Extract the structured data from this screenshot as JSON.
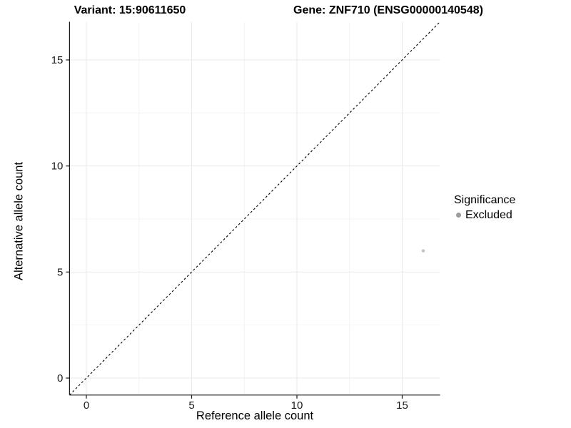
{
  "chart_data": {
    "type": "scatter",
    "titles": {
      "variant": "Variant: 15:90611650",
      "gene": "Gene: ZNF710 (ENSG00000140548)"
    },
    "xlabel": "Reference allele count",
    "ylabel": "Alternative allele count",
    "xlim": [
      -0.8,
      16.8
    ],
    "ylim": [
      -0.8,
      16.8
    ],
    "x_ticks": [
      0,
      5,
      10,
      15
    ],
    "y_ticks": [
      0,
      5,
      10,
      15
    ],
    "x_minor_ticks": [
      2.5,
      7.5,
      12.5
    ],
    "y_minor_ticks": [
      2.5,
      7.5,
      12.5
    ],
    "grid": "major+minor",
    "reference_line": {
      "kind": "identity y=x",
      "style": "dashed",
      "color": "#000000"
    },
    "series": [
      {
        "name": "Excluded",
        "color": "#c4c4c4",
        "points": [
          [
            16,
            6
          ]
        ]
      }
    ],
    "legend": {
      "title": "Significance",
      "position": "right",
      "entries": [
        {
          "label": "Excluded",
          "color": "#9b9b9b"
        }
      ]
    },
    "colors": {
      "grid_major": "#e9e9e9",
      "grid_minor": "#f4f4f4",
      "axis": "#1a1a1a",
      "background": "#ffffff"
    }
  }
}
